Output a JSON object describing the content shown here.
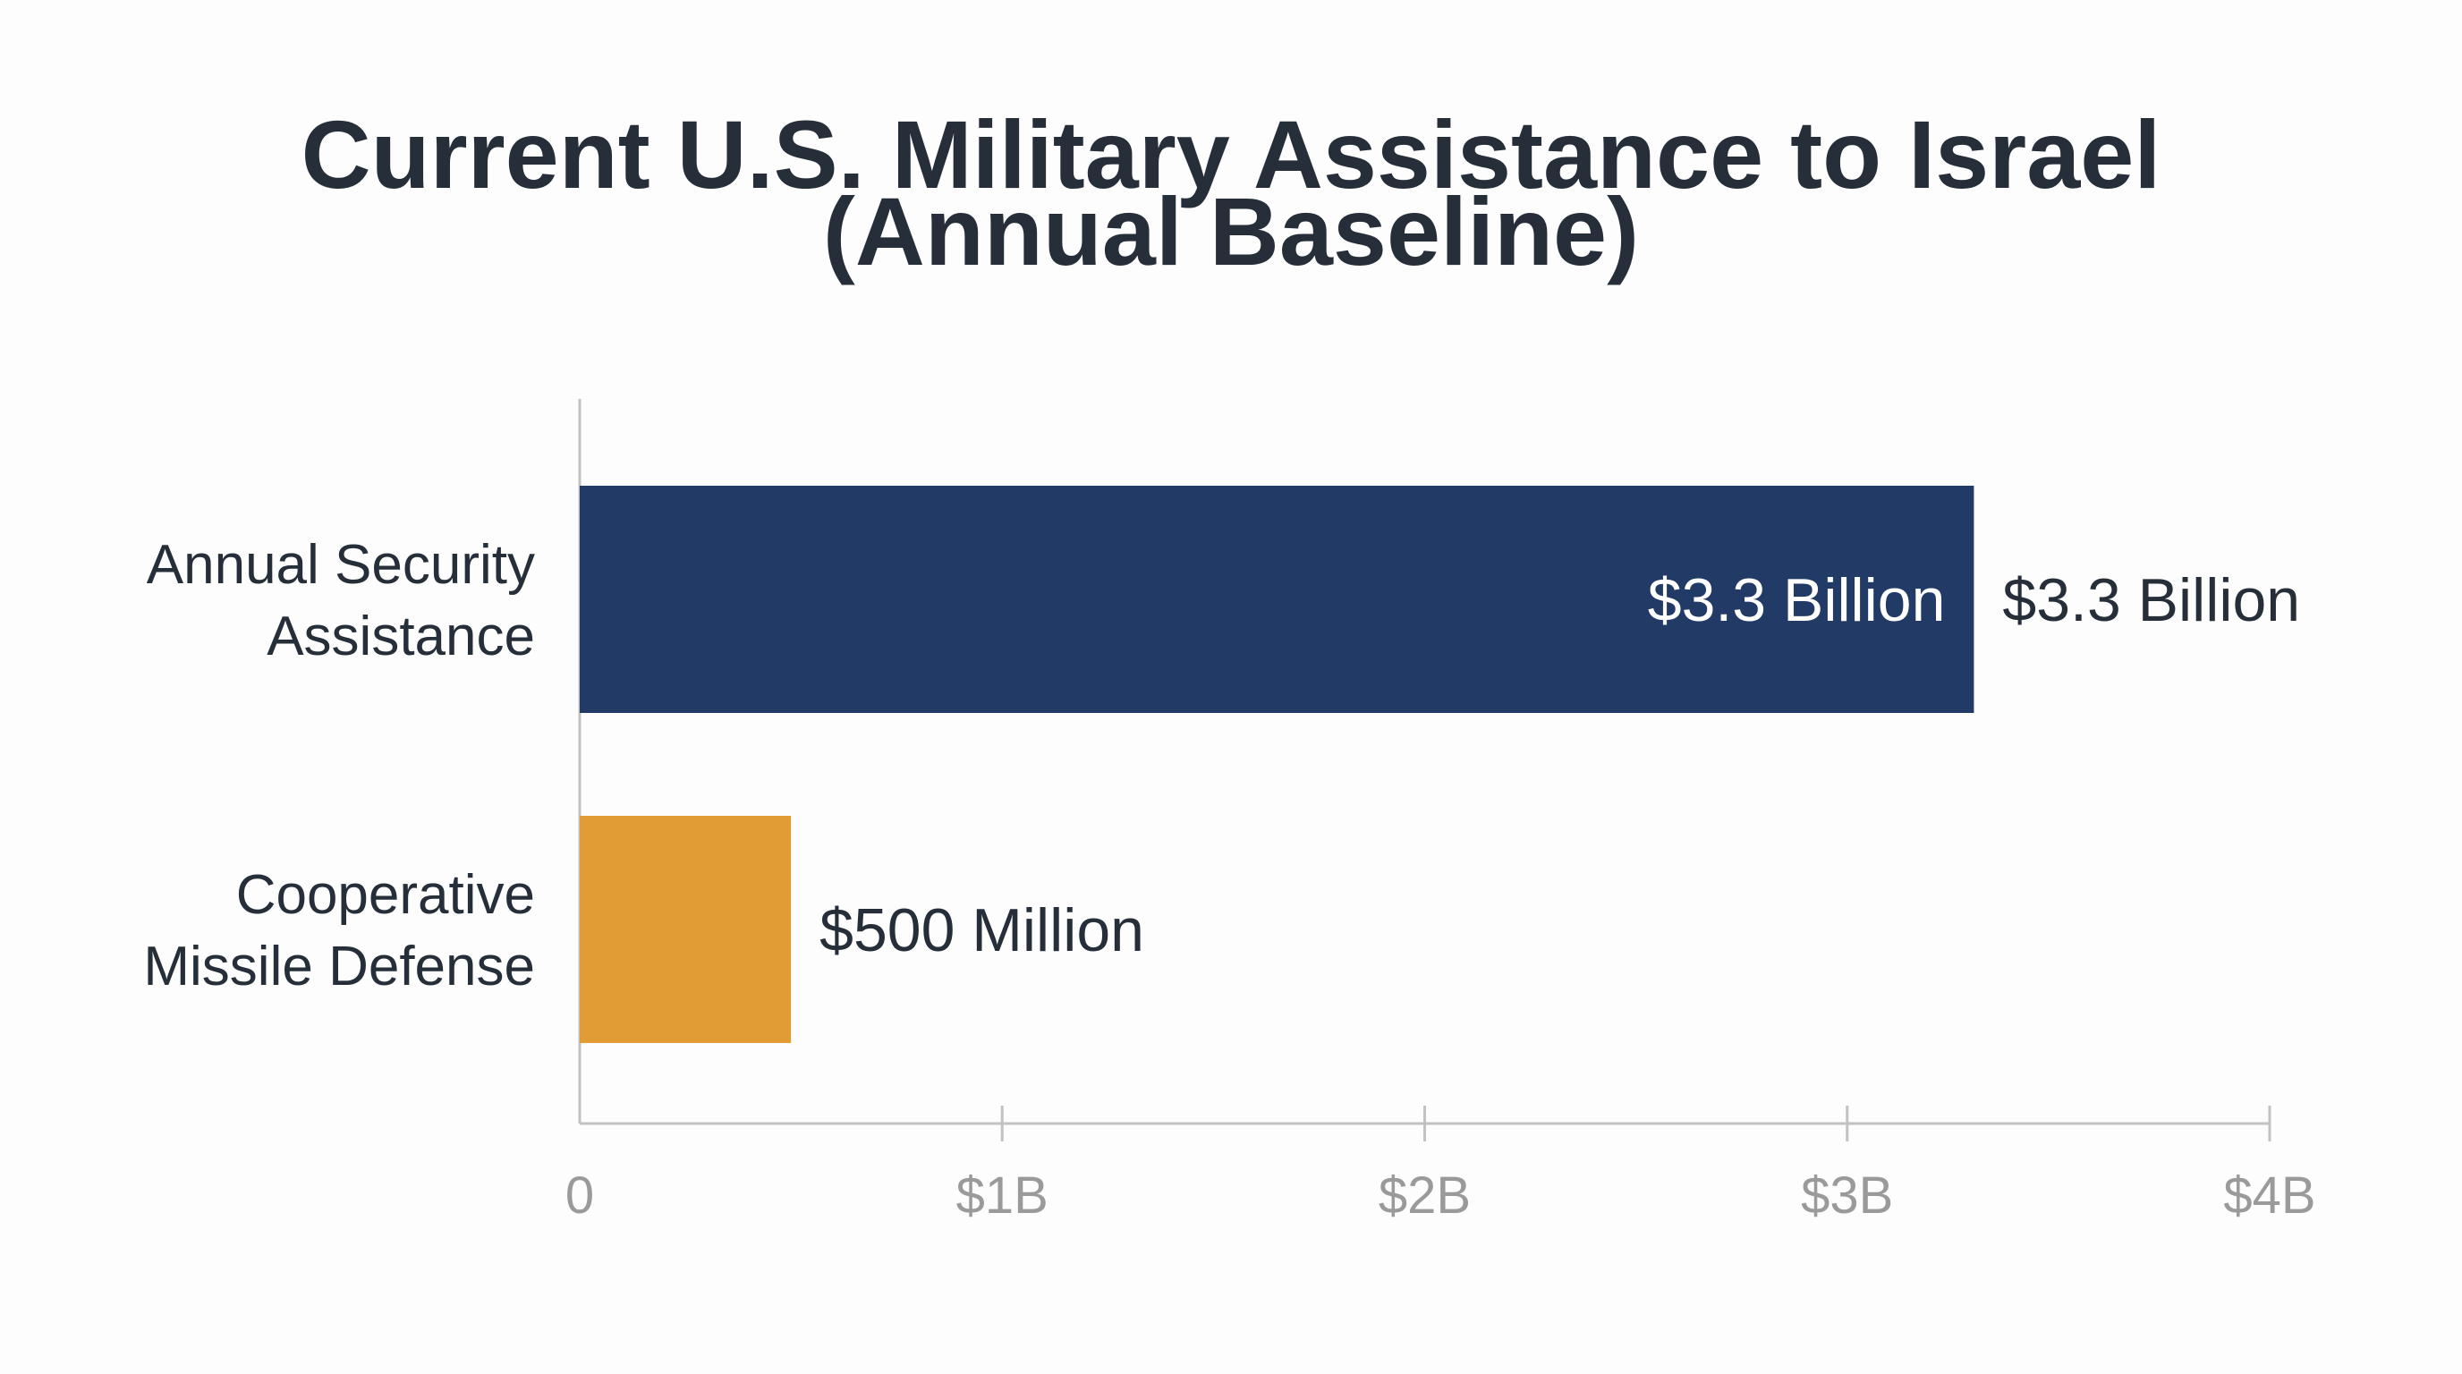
{
  "chart_data": {
    "type": "bar",
    "orientation": "horizontal",
    "title": "Current U.S. Military Assistance to Israel",
    "subtitle": "(Annual Baseline)",
    "xlabel": "",
    "ylabel": "",
    "xlim": [
      0,
      4
    ],
    "x_unit": "billion USD",
    "x_ticks": [
      0,
      1,
      2,
      3,
      4
    ],
    "x_tick_labels": [
      "0",
      "$1B",
      "$2B",
      "$3B",
      "$4B"
    ],
    "grid": false,
    "legend": "none",
    "categories": [
      {
        "lines": [
          "Annual Security",
          "Assistance"
        ]
      },
      {
        "lines": [
          "Cooperative",
          "Missile Defense"
        ]
      }
    ],
    "values": [
      3.3,
      0.5
    ],
    "value_labels": [
      "$3.3 Billion",
      "$500 Million"
    ],
    "inner_value_labels": [
      "$3.3 Billion",
      ""
    ],
    "bar_colors": [
      "#223a66",
      "#e29c35"
    ],
    "axis_color": "#c2c2c2"
  }
}
